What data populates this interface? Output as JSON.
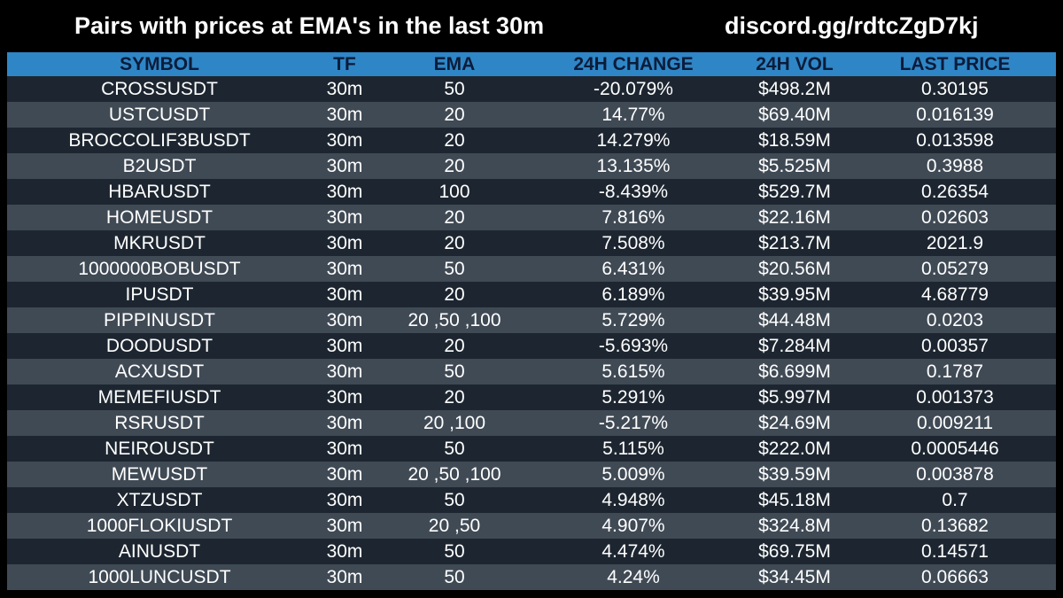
{
  "header": {
    "title": "Pairs with prices at EMA's in the last 30m",
    "discord": "discord.gg/rdtcZgD7kj"
  },
  "table": {
    "columns": [
      "SYMBOL",
      "TF",
      "EMA",
      "24H CHANGE",
      "24H VOL",
      "LAST PRICE"
    ],
    "rows": [
      {
        "symbol": "CROSSUSDT",
        "tf": "30m",
        "ema": "50",
        "change": "-20.079%",
        "vol": "$498.2M",
        "price": "0.30195"
      },
      {
        "symbol": "USTCUSDT",
        "tf": "30m",
        "ema": "20",
        "change": "14.77%",
        "vol": "$69.40M",
        "price": "0.016139"
      },
      {
        "symbol": "BROCCOLIF3BUSDT",
        "tf": "30m",
        "ema": "20",
        "change": "14.279%",
        "vol": "$18.59M",
        "price": "0.013598"
      },
      {
        "symbol": "B2USDT",
        "tf": "30m",
        "ema": "20",
        "change": "13.135%",
        "vol": "$5.525M",
        "price": "0.3988"
      },
      {
        "symbol": "HBARUSDT",
        "tf": "30m",
        "ema": "100",
        "change": "-8.439%",
        "vol": "$529.7M",
        "price": "0.26354"
      },
      {
        "symbol": "HOMEUSDT",
        "tf": "30m",
        "ema": "20",
        "change": "7.816%",
        "vol": "$22.16M",
        "price": "0.02603"
      },
      {
        "symbol": "MKRUSDT",
        "tf": "30m",
        "ema": "20",
        "change": "7.508%",
        "vol": "$213.7M",
        "price": "2021.9"
      },
      {
        "symbol": "1000000BOBUSDT",
        "tf": "30m",
        "ema": "50",
        "change": "6.431%",
        "vol": "$20.56M",
        "price": "0.05279"
      },
      {
        "symbol": "IPUSDT",
        "tf": "30m",
        "ema": "20",
        "change": "6.189%",
        "vol": "$39.95M",
        "price": "4.68779"
      },
      {
        "symbol": "PIPPINUSDT",
        "tf": "30m",
        "ema": "20 ,50 ,100",
        "change": "5.729%",
        "vol": "$44.48M",
        "price": "0.0203"
      },
      {
        "symbol": "DOODUSDT",
        "tf": "30m",
        "ema": "20",
        "change": "-5.693%",
        "vol": "$7.284M",
        "price": "0.00357"
      },
      {
        "symbol": "ACXUSDT",
        "tf": "30m",
        "ema": "50",
        "change": "5.615%",
        "vol": "$6.699M",
        "price": "0.1787"
      },
      {
        "symbol": "MEMEFIUSDT",
        "tf": "30m",
        "ema": "20",
        "change": "5.291%",
        "vol": "$5.997M",
        "price": "0.001373"
      },
      {
        "symbol": "RSRUSDT",
        "tf": "30m",
        "ema": "20 ,100",
        "change": "-5.217%",
        "vol": "$24.69M",
        "price": "0.009211"
      },
      {
        "symbol": "NEIROUSDT",
        "tf": "30m",
        "ema": "50",
        "change": "5.115%",
        "vol": "$222.0M",
        "price": "0.0005446"
      },
      {
        "symbol": "MEWUSDT",
        "tf": "30m",
        "ema": "20 ,50 ,100",
        "change": "5.009%",
        "vol": "$39.59M",
        "price": "0.003878"
      },
      {
        "symbol": "XTZUSDT",
        "tf": "30m",
        "ema": "50",
        "change": "4.948%",
        "vol": "$45.18M",
        "price": "0.7"
      },
      {
        "symbol": "1000FLOKIUSDT",
        "tf": "30m",
        "ema": "20 ,50",
        "change": "4.907%",
        "vol": "$324.8M",
        "price": "0.13682"
      },
      {
        "symbol": "AINUSDT",
        "tf": "30m",
        "ema": "50",
        "change": "4.474%",
        "vol": "$69.75M",
        "price": "0.14571"
      },
      {
        "symbol": "1000LUNCUSDT",
        "tf": "30m",
        "ema": "50",
        "change": "4.24%",
        "vol": "$34.45M",
        "price": "0.06663"
      }
    ]
  },
  "colors": {
    "background": "#000000",
    "header_row": "#2f86c6",
    "header_text": "#0b1c3a",
    "row_dark": "#1d2630",
    "row_light": "#404a55",
    "text": "#ffffff"
  }
}
